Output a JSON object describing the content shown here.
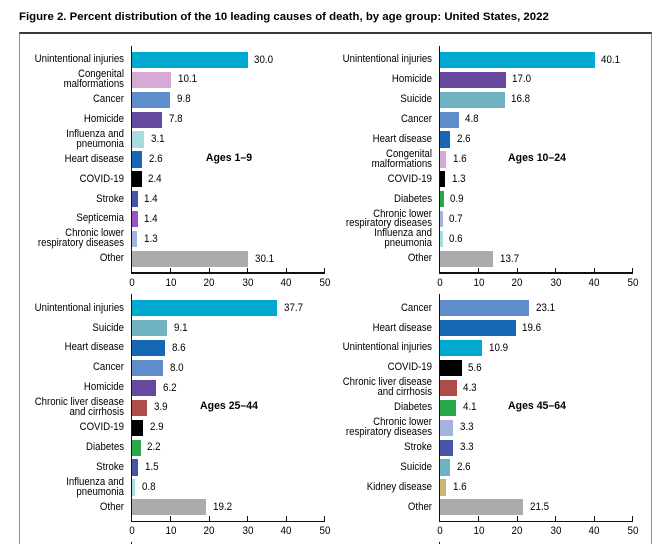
{
  "title": "Figure 2. Percent distribution of the 10 leading causes of death, by age group: United States, 2022",
  "colors": {
    "Unintentional injuries": "#00A9CF",
    "Homicide": "#664A9D",
    "Suicide": "#6FB3C3",
    "Cancer": "#5F8DCC",
    "Heart disease": "#1668B5",
    "Congenital malformations": "#D6A9D7",
    "COVID-19": "#000000",
    "Diabetes": "#2BA84A",
    "Chronic lower respiratory diseases": "#A4B3DE",
    "Influenza and pneumonia": "#A9DCDF",
    "Stroke": "#4656A5",
    "Septicemia": "#9A52C4",
    "Chronic liver disease and cirrhosis": "#AE4C49",
    "Kidney disease": "#C8B672",
    "Other": "#ABABAB"
  },
  "chart_data": [
    {
      "type": "bar",
      "orientation": "horizontal",
      "title": "Ages 1–9",
      "categories": [
        "Unintentional injuries",
        "Congenital\nmalformations",
        "Cancer",
        "Homicide",
        "Influenza and\npneumonia",
        "Heart disease",
        "COVID-19",
        "Stroke",
        "Septicemia",
        "Chronic lower\nrespiratory diseases",
        "Other"
      ],
      "cause_keys": [
        "Unintentional injuries",
        "Congenital malformations",
        "Cancer",
        "Homicide",
        "Influenza and pneumonia",
        "Heart disease",
        "COVID-19",
        "Stroke",
        "Septicemia",
        "Chronic lower respiratory diseases",
        "Other"
      ],
      "values": [
        30.0,
        10.1,
        9.8,
        7.8,
        3.1,
        2.6,
        2.4,
        1.4,
        1.4,
        1.3,
        30.1
      ],
      "xlim": [
        0,
        50
      ],
      "x_ticks": [
        0,
        10,
        20,
        30,
        40,
        50
      ],
      "xlabel": "",
      "ylabel": ""
    },
    {
      "type": "bar",
      "orientation": "horizontal",
      "title": "Ages 10–24",
      "categories": [
        "Unintentional injuries",
        "Homicide",
        "Suicide",
        "Cancer",
        "Heart disease",
        "Congenital\nmalformations",
        "COVID-19",
        "Diabetes",
        "Chronic lower\nrespiratory diseases",
        "Influenza and\npneumonia",
        "Other"
      ],
      "cause_keys": [
        "Unintentional injuries",
        "Homicide",
        "Suicide",
        "Cancer",
        "Heart disease",
        "Congenital malformations",
        "COVID-19",
        "Diabetes",
        "Chronic lower respiratory diseases",
        "Influenza and pneumonia",
        "Other"
      ],
      "values": [
        40.1,
        17.0,
        16.8,
        4.8,
        2.6,
        1.6,
        1.3,
        0.9,
        0.7,
        0.6,
        13.7
      ],
      "xlim": [
        0,
        50
      ],
      "x_ticks": [
        0,
        10,
        20,
        30,
        40,
        50
      ],
      "xlabel": "",
      "ylabel": ""
    },
    {
      "type": "bar",
      "orientation": "horizontal",
      "title": "Ages 25–44",
      "categories": [
        "Unintentional injuries",
        "Suicide",
        "Heart disease",
        "Cancer",
        "Homicide",
        "Chronic liver disease\nand cirrhosis",
        "COVID-19",
        "Diabetes",
        "Stroke",
        "Influenza and\npneumonia",
        "Other"
      ],
      "cause_keys": [
        "Unintentional injuries",
        "Suicide",
        "Heart disease",
        "Cancer",
        "Homicide",
        "Chronic liver disease and cirrhosis",
        "COVID-19",
        "Diabetes",
        "Stroke",
        "Influenza and pneumonia",
        "Other"
      ],
      "values": [
        37.7,
        9.1,
        8.6,
        8.0,
        6.2,
        3.9,
        2.9,
        2.2,
        1.5,
        0.8,
        19.2
      ],
      "xlim": [
        0,
        50
      ],
      "x_ticks": [
        0,
        10,
        20,
        30,
        40,
        50
      ],
      "xlabel": "",
      "ylabel": ""
    },
    {
      "type": "bar",
      "orientation": "horizontal",
      "title": "Ages 45–64",
      "categories": [
        "Cancer",
        "Heart disease",
        "Unintentional injuries",
        "COVID-19",
        "Chronic liver disease\nand cirrhosis",
        "Diabetes",
        "Chronic lower\nrespiratory diseases",
        "Stroke",
        "Suicide",
        "Kidney disease",
        "Other"
      ],
      "cause_keys": [
        "Cancer",
        "Heart disease",
        "Unintentional injuries",
        "COVID-19",
        "Chronic liver disease and cirrhosis",
        "Diabetes",
        "Chronic lower respiratory diseases",
        "Stroke",
        "Suicide",
        "Kidney disease",
        "Other"
      ],
      "values": [
        23.1,
        19.6,
        10.9,
        5.6,
        4.3,
        4.1,
        3.3,
        3.3,
        2.6,
        1.6,
        21.5
      ],
      "xlim": [
        0,
        50
      ],
      "x_ticks": [
        0,
        10,
        20,
        30,
        40,
        50
      ],
      "xlabel": "",
      "ylabel": ""
    }
  ]
}
